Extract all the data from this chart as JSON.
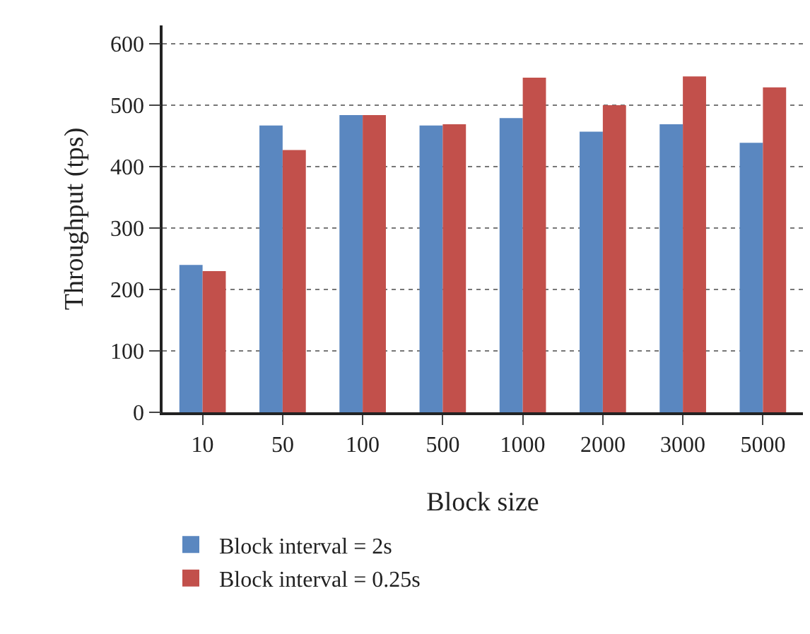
{
  "chart_data": {
    "type": "bar",
    "xlabel": "Block size",
    "ylabel": "Throughput (tps)",
    "categories": [
      "10",
      "50",
      "100",
      "500",
      "1000",
      "2000",
      "3000",
      "5000"
    ],
    "series": [
      {
        "name": "Block interval = 2s",
        "color": "#5a87c0",
        "values": [
          240,
          467,
          484,
          467,
          479,
          457,
          469,
          439
        ]
      },
      {
        "name": "Block interval = 0.25s",
        "color": "#c2504b",
        "values": [
          230,
          427,
          484,
          469,
          545,
          500,
          547,
          529
        ]
      }
    ],
    "ylim": [
      0,
      630
    ],
    "yticks": [
      0,
      100,
      200,
      300,
      400,
      500,
      600
    ],
    "grid": "y",
    "legend": "bottom"
  }
}
